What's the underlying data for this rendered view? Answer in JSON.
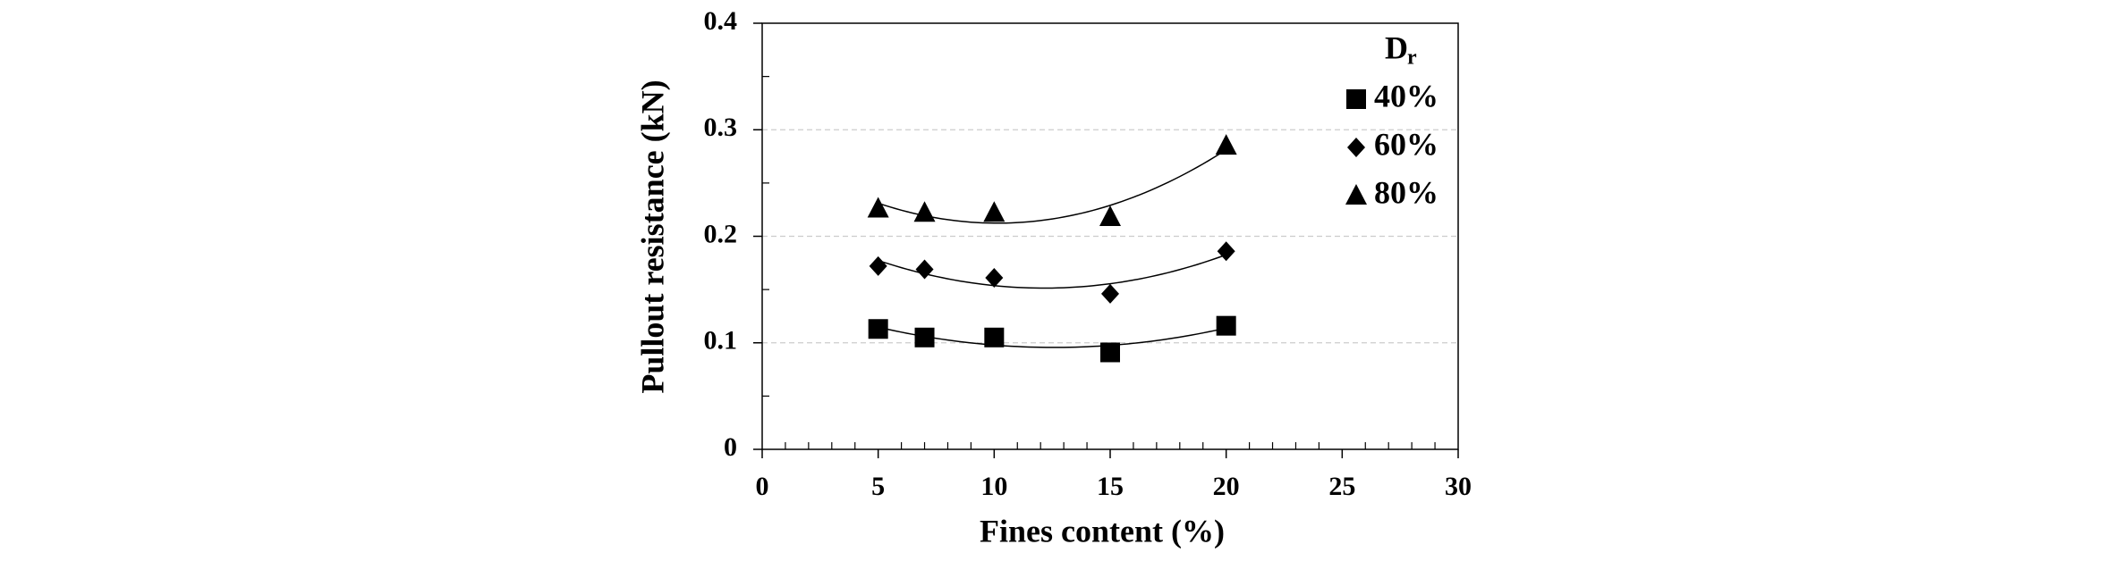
{
  "chart_data": {
    "type": "scatter",
    "xlabel": "Fines content (%)",
    "ylabel": "Pullout resistance (kN)",
    "legend_title": "D",
    "legend_title_sub": "r",
    "legend": "upper right",
    "trendline": "polynomial",
    "grid": true,
    "minor_ticks": true,
    "xlim": [
      0,
      30
    ],
    "xticks": [
      0,
      5,
      10,
      15,
      20,
      25,
      30
    ],
    "ylim": [
      0,
      0.4
    ],
    "yticks": [
      0,
      0.1,
      0.2,
      0.3,
      0.4
    ],
    "series": [
      {
        "name": "40%",
        "marker": "square",
        "color": "#000000",
        "x": [
          5,
          7,
          10,
          15,
          20
        ],
        "values": [
          0.113,
          0.105,
          0.105,
          0.091,
          0.116
        ]
      },
      {
        "name": "60%",
        "marker": "diamond",
        "color": "#000000",
        "x": [
          5,
          7,
          10,
          15,
          20
        ],
        "values": [
          0.172,
          0.169,
          0.161,
          0.146,
          0.186
        ]
      },
      {
        "name": "80%",
        "marker": "triangle",
        "color": "#000000",
        "x": [
          5,
          7,
          10,
          15,
          20
        ],
        "values": [
          0.226,
          0.222,
          0.222,
          0.218,
          0.285
        ]
      }
    ]
  }
}
